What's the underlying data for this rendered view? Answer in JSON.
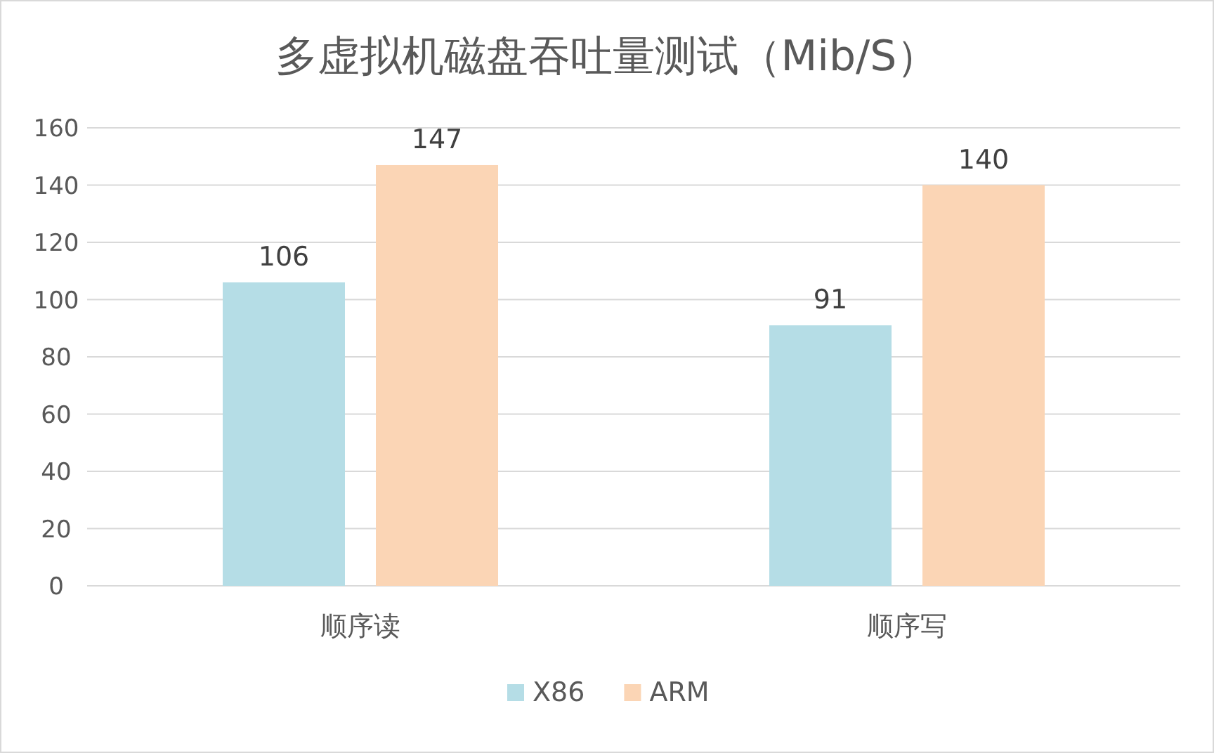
{
  "chart_data": {
    "type": "bar",
    "title": "多虚拟机磁盘吞吐量测试（Mib/S）",
    "categories": [
      "顺序读",
      "顺序写"
    ],
    "series": [
      {
        "name": "X86",
        "color": "#b5dde6",
        "values": [
          106,
          91
        ]
      },
      {
        "name": "ARM",
        "color": "#fbd5b5",
        "values": [
          147,
          140
        ]
      }
    ],
    "ylim": [
      0,
      160
    ],
    "yticks": [
      0,
      20,
      40,
      60,
      80,
      100,
      120,
      140,
      160
    ],
    "grid": "y",
    "legend": "bottom",
    "data_labels": true
  }
}
